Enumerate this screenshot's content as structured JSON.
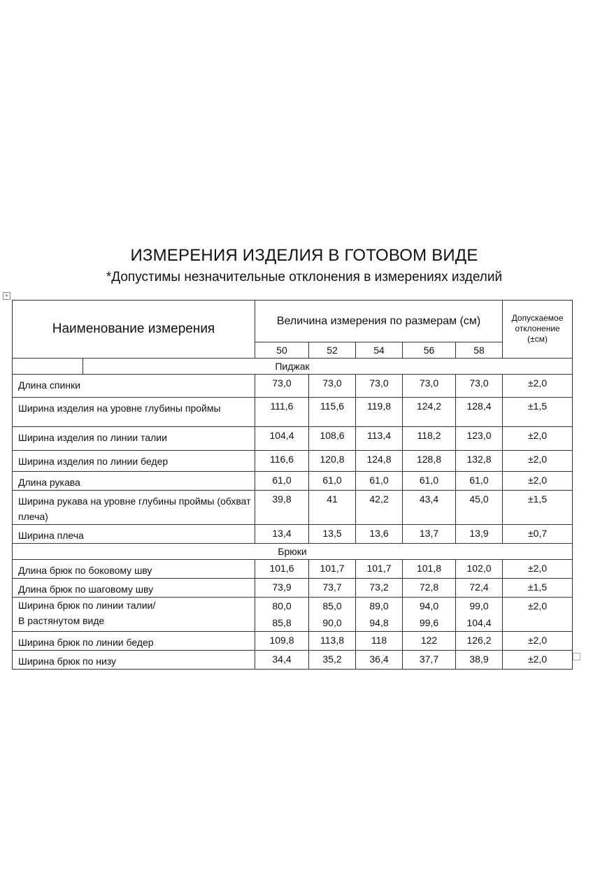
{
  "title": "ИЗМЕРЕНИЯ ИЗДЕЛИЯ В ГОТОВОМ ВИДЕ",
  "subtitle": "*Допустимы незначительные отклонения в измерениях изделий",
  "table": {
    "header_name": "Наименование измерения",
    "header_values": "Величина измерения по размерам (см)",
    "header_tolerance_line1": "Допускаемое",
    "header_tolerance_line2": "отклонение",
    "header_tolerance_line3": "(±см)",
    "sizes": [
      "50",
      "52",
      "54",
      "56",
      "58"
    ],
    "sections": [
      {
        "title": "Пиджак",
        "rows": [
          {
            "name": "Длина спинки",
            "values": [
              "73,0",
              "73,0",
              "73,0",
              "73,0",
              "73,0"
            ],
            "tol": "±2,0"
          },
          {
            "name": "Ширина изделия на уровне глубины проймы",
            "values": [
              "111,6",
              "115,6",
              "119,8",
              "124,2",
              "128,4"
            ],
            "tol": "±1,5"
          },
          {
            "name": "Ширина изделия по линии талии",
            "values": [
              "104,4",
              "108,6",
              "113,4",
              "118,2",
              "123,0"
            ],
            "tol": "±2,0"
          },
          {
            "name": "Ширина изделия по линии бедер",
            "values": [
              "116,6",
              "120,8",
              "124,8",
              "128,8",
              "132,8"
            ],
            "tol": "±2,0"
          },
          {
            "name": "Длина рукава",
            "values": [
              "61,0",
              "61,0",
              "61,0",
              "61,0",
              "61,0"
            ],
            "tol": "±2,0"
          },
          {
            "name": "Ширина рукава на уровне глубины проймы (обхват плеча)",
            "values": [
              "39,8",
              "41",
              "42,2",
              "43,4",
              "45,0"
            ],
            "tol": "±1,5"
          },
          {
            "name": "Ширина плеча",
            "values": [
              "13,4",
              "13,5",
              "13,6",
              "13,7",
              "13,9"
            ],
            "tol": "±0,7"
          }
        ]
      },
      {
        "title": "Брюки",
        "rows": [
          {
            "name": "Длина брюк по боковому шву",
            "values": [
              "101,6",
              "101,7",
              "101,7",
              "101,8",
              "102,0"
            ],
            "tol": "±2,0"
          },
          {
            "name": "Длина брюк по шаговому шву",
            "values": [
              "73,9",
              "73,7",
              "73,2",
              "72,8",
              "72,4"
            ],
            "tol": "±1,5"
          },
          {
            "name": "Ширина брюк по линии талии/",
            "name2": "В растянутом виде",
            "values": [
              "80,0",
              "85,0",
              "89,0",
              "94,0",
              "99,0"
            ],
            "values2": [
              "85,8",
              "90,0",
              "94,8",
              "99,6",
              "104,4"
            ],
            "tol": "±2,0"
          },
          {
            "name": "Ширина брюк по линии бедер",
            "values": [
              "109,8",
              "113,8",
              "118",
              "122",
              "126,2"
            ],
            "tol": "±2,0"
          },
          {
            "name": "Ширина брюк по низу",
            "values": [
              "34,4",
              "35,2",
              "36,4",
              "37,7",
              "38,9"
            ],
            "tol": "±2,0"
          }
        ]
      }
    ]
  }
}
